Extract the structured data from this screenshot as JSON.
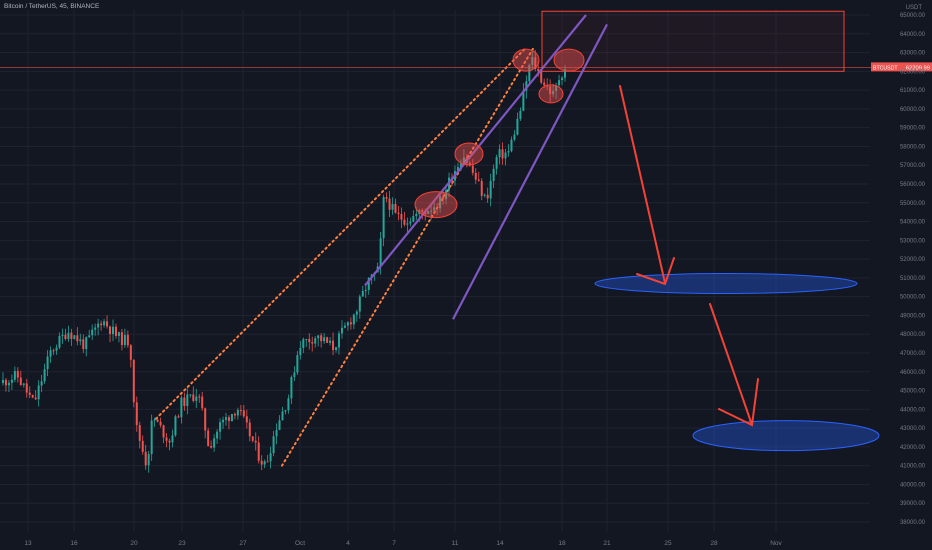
{
  "header": {
    "symbol": "Bitcoin / TetherUS",
    "interval": "45",
    "exchange": "BINANCE"
  },
  "colors": {
    "background": "#131722",
    "grid": "#1f2330",
    "up": "#26a69a",
    "down": "#ef5350",
    "price_line": "#ef5350",
    "channel": "#7e57c2",
    "dotted_trend": "#ff7f3f",
    "zone_fill": "#1e3a8a",
    "zone_stroke": "#2962ff",
    "arrow": "#f44336",
    "axis_text": "#787b86"
  },
  "chart_data": {
    "type": "candlestick",
    "y_axis_label": "USDT",
    "ylim": [
      37500,
      65500
    ],
    "y_ticks": [
      38000,
      39000,
      40000,
      41000,
      42000,
      43000,
      44000,
      45000,
      46000,
      47000,
      48000,
      49000,
      50000,
      51000,
      52000,
      53000,
      54000,
      55000,
      56000,
      57000,
      58000,
      59000,
      60000,
      61000,
      62000,
      63000,
      64000,
      65000
    ],
    "x_ticks": [
      "13",
      "16",
      "20",
      "23",
      "27",
      "Oct",
      "4",
      "7",
      "11",
      "14",
      "18",
      "21",
      "25",
      "28",
      "Nov"
    ],
    "current_price": {
      "symbol_tag": "BTCUSDT",
      "value": "62209.99",
      "price": 62209.99
    },
    "price_path": [
      [
        0,
        45400
      ],
      [
        3,
        45800
      ],
      [
        6,
        44300
      ],
      [
        9,
        47100
      ],
      [
        12,
        48200
      ],
      [
        15,
        47400
      ],
      [
        18,
        48800
      ],
      [
        21,
        47800
      ],
      [
        23,
        47600
      ],
      [
        24,
        43200
      ],
      [
        26,
        41000
      ],
      [
        27,
        43600
      ],
      [
        30,
        42300
      ],
      [
        32,
        44300
      ],
      [
        35,
        44900
      ],
      [
        37,
        42000
      ],
      [
        39,
        43200
      ],
      [
        42,
        44100
      ],
      [
        44,
        42800
      ],
      [
        46,
        41400
      ],
      [
        47,
        41000
      ],
      [
        49,
        43200
      ],
      [
        51,
        44600
      ],
      [
        53,
        47500
      ],
      [
        56,
        47900
      ],
      [
        59,
        47300
      ],
      [
        61,
        48300
      ],
      [
        63,
        49200
      ],
      [
        65,
        50700
      ],
      [
        67,
        51400
      ],
      [
        68,
        55500
      ],
      [
        70,
        54300
      ],
      [
        72,
        54100
      ],
      [
        74,
        54400
      ],
      [
        76,
        54700
      ],
      [
        78,
        55100
      ],
      [
        80,
        56500
      ],
      [
        82,
        57600
      ],
      [
        84,
        56400
      ],
      [
        86,
        55100
      ],
      [
        88,
        57500
      ],
      [
        90,
        57700
      ],
      [
        92,
        59800
      ],
      [
        94,
        62700
      ],
      [
        96,
        61500
      ],
      [
        98,
        60700
      ],
      [
        99,
        61700
      ],
      [
        100,
        62210
      ]
    ]
  },
  "annotations": {
    "resistance_box": {
      "from_price": 62000,
      "to_price": 65200
    },
    "target_zones": [
      {
        "name": "first-target",
        "price": 50700
      },
      {
        "name": "second-target",
        "price": 42600
      }
    ],
    "highlight_markers": [
      {
        "name": "top-left",
        "price": 62600
      },
      {
        "name": "top-right",
        "price": 62600
      },
      {
        "name": "pullback",
        "price": 60800
      },
      {
        "name": "mid-high",
        "price": 57600
      },
      {
        "name": "consolidation",
        "price": 54900
      }
    ]
  }
}
